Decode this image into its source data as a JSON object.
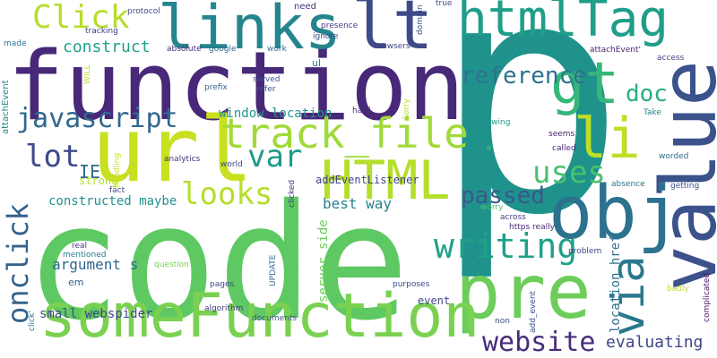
{
  "words": [
    {
      "text": "p",
      "color": "#20928c"
    },
    {
      "text": "code",
      "color": "#5ec962"
    },
    {
      "text": "function",
      "color": "#482878"
    },
    {
      "text": "url",
      "color": "#c8e020"
    },
    {
      "text": "pre",
      "color": "#6ccd5a"
    },
    {
      "text": "someFunction",
      "color": "#7ad151"
    },
    {
      "text": "value",
      "color": "#3b528b"
    },
    {
      "text": "obj",
      "color": "#2c728e"
    },
    {
      "text": "htmlTag",
      "color": "#1f9e89"
    },
    {
      "text": "links",
      "color": "#25858e"
    },
    {
      "text": "lt",
      "color": "#3e4a89"
    },
    {
      "text": "gt",
      "color": "#35b779"
    },
    {
      "text": "li",
      "color": "#bddf26"
    },
    {
      "text": "via",
      "color": "#2a788e"
    },
    {
      "text": "HTML",
      "color": "#b5de2b"
    },
    {
      "text": "track_file",
      "color": "#a0da39"
    },
    {
      "text": "Click",
      "color": "#b5de2b"
    },
    {
      "text": "website",
      "color": "#472c7a"
    },
    {
      "text": "javascript",
      "color": "#31688e"
    },
    {
      "text": "writing",
      "color": "#1fa187"
    },
    {
      "text": "onclick",
      "color": "#33638d"
    },
    {
      "text": "reference",
      "color": "#2c728e"
    },
    {
      "text": "var",
      "color": "#1f9a8a"
    },
    {
      "text": "lot",
      "color": "#3e4989"
    },
    {
      "text": "looks",
      "color": "#b5de2b"
    },
    {
      "text": "uses",
      "color": "#4ac16d"
    },
    {
      "text": "passed",
      "color": "#38598c"
    },
    {
      "text": "doc",
      "color": "#29af7f"
    },
    {
      "text": "evaluating",
      "color": "#404688"
    },
    {
      "text": "construct",
      "color": "#1fa188"
    },
    {
      "text": "IE",
      "color": "#2f6c8e"
    },
    {
      "text": "window location",
      "color": "#20938c"
    },
    {
      "text": "constructed maybe",
      "color": "#21918c"
    },
    {
      "text": "best way",
      "color": "#26828e"
    },
    {
      "text": "argument s",
      "color": "#31678e"
    },
    {
      "text": "small webspider",
      "color": "#3f4788"
    },
    {
      "text": "location href",
      "color": "#2d718e"
    },
    {
      "text": "server side",
      "color": "#6ccd5a"
    },
    {
      "text": "addEventListener",
      "color": "#404588"
    },
    {
      "text": "event",
      "color": "#3f4889"
    },
    {
      "text": "strong",
      "color": "#b8de29"
    },
    {
      "text": "attachEvent",
      "color": "#24868e"
    },
    {
      "text": "attachEvent'",
      "color": "#482475"
    },
    {
      "text": "need",
      "color": "#46337e"
    },
    {
      "text": "presence",
      "color": "#453882"
    },
    {
      "text": "ignore",
      "color": "#404688"
    },
    {
      "text": "tracking",
      "color": "#443a83"
    },
    {
      "text": "absolute",
      "color": "#46307e"
    },
    {
      "text": "google",
      "color": "#31688e"
    },
    {
      "text": "work",
      "color": "#2e6e8e"
    },
    {
      "text": "browsers",
      "color": "#424086"
    },
    {
      "text": "domain",
      "color": "#3b528b"
    },
    {
      "text": "true",
      "color": "#3d4e8a"
    },
    {
      "text": "protocol",
      "color": "#3e4c8a"
    },
    {
      "text": "made",
      "color": "#2a778e"
    },
    {
      "text": "access",
      "color": "#414487"
    },
    {
      "text": "WILL",
      "color": "#c0df25"
    },
    {
      "text": "prefix",
      "color": "#35608d"
    },
    {
      "text": "refer",
      "color": "#3b518b"
    },
    {
      "text": "served",
      "color": "#38598c"
    },
    {
      "text": "ul",
      "color": "#2a768e"
    },
    {
      "text": "hard",
      "color": "#472d7b"
    },
    {
      "text": "Sorry",
      "color": "#b5de2b"
    },
    {
      "text": "following",
      "color": "#1f988b"
    },
    {
      "text": "seems",
      "color": "#482677"
    },
    {
      "text": "called",
      "color": "#482576"
    },
    {
      "text": "worded",
      "color": "#31688e"
    },
    {
      "text": "Take",
      "color": "#27808e"
    },
    {
      "text": "getting",
      "color": "#3b518b"
    },
    {
      "text": "absence",
      "color": "#2c718e"
    },
    {
      "text": "handling",
      "color": "#cae11f"
    },
    {
      "text": "analytics",
      "color": "#46327e"
    },
    {
      "text": "world",
      "color": "#3f4889"
    },
    {
      "text": "fact",
      "color": "#3f4788"
    },
    {
      "text": "clicked",
      "color": "#46327e"
    },
    {
      "text": "worry",
      "color": "#4ac16d"
    },
    {
      "text": "across",
      "color": "#424086"
    },
    {
      "text": "https really",
      "color": "#482878"
    },
    {
      "text": "real",
      "color": "#453882"
    },
    {
      "text": "mentioned",
      "color": "#287d8e"
    },
    {
      "text": "question",
      "color": "#7ad151"
    },
    {
      "text": "UPDATE",
      "color": "#31688e"
    },
    {
      "text": "problem",
      "color": "#404688"
    },
    {
      "text": "em",
      "color": "#34618d"
    },
    {
      "text": "pages",
      "color": "#3d4e8a"
    },
    {
      "text": "purposes",
      "color": "#3e4a89"
    },
    {
      "text": "algorithm",
      "color": "#443b84"
    },
    {
      "text": "click'",
      "color": "#2d708e"
    },
    {
      "text": "documents",
      "color": "#3b528b"
    },
    {
      "text": "non",
      "color": "#3d4d8a"
    },
    {
      "text": "add_event",
      "color": "#3b518b"
    },
    {
      "text": "badly",
      "color": "#c2df23"
    },
    {
      "text": "complicated",
      "color": "#481a6c"
    },
    {
      "text": "e",
      "color": "#50c46a"
    }
  ]
}
